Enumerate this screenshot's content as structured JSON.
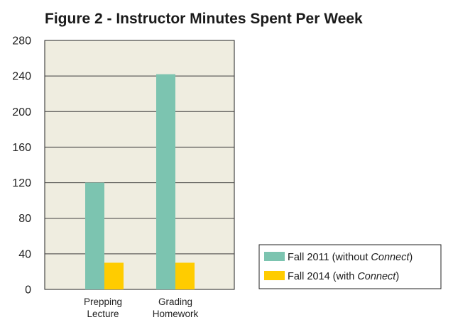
{
  "chart_data": {
    "type": "bar",
    "title": "Figure 2 - Instructor Minutes Spent Per Week",
    "categories": [
      [
        "Prepping",
        "Lecture"
      ],
      [
        "Grading",
        "Homework"
      ]
    ],
    "series": [
      {
        "name": "Fall 2011 (without Connect)",
        "name_parts": [
          "Fall 2011 (without ",
          "Connect",
          ")"
        ],
        "values": [
          120,
          242
        ],
        "color": "#7cc4b0"
      },
      {
        "name": "Fall 2014 (with Connect)",
        "name_parts": [
          "Fall 2014 (with ",
          "Connect",
          ")"
        ],
        "values": [
          30,
          30
        ],
        "color": "#ffcc00"
      }
    ],
    "ylim": [
      0,
      280
    ],
    "yticks": [
      "0",
      "40",
      "80",
      "120",
      "160",
      "200",
      "240",
      "280"
    ],
    "xlabel": "",
    "ylabel": "",
    "grid": true,
    "plot_background": "#efede0",
    "legend_position": "bottom-right"
  }
}
